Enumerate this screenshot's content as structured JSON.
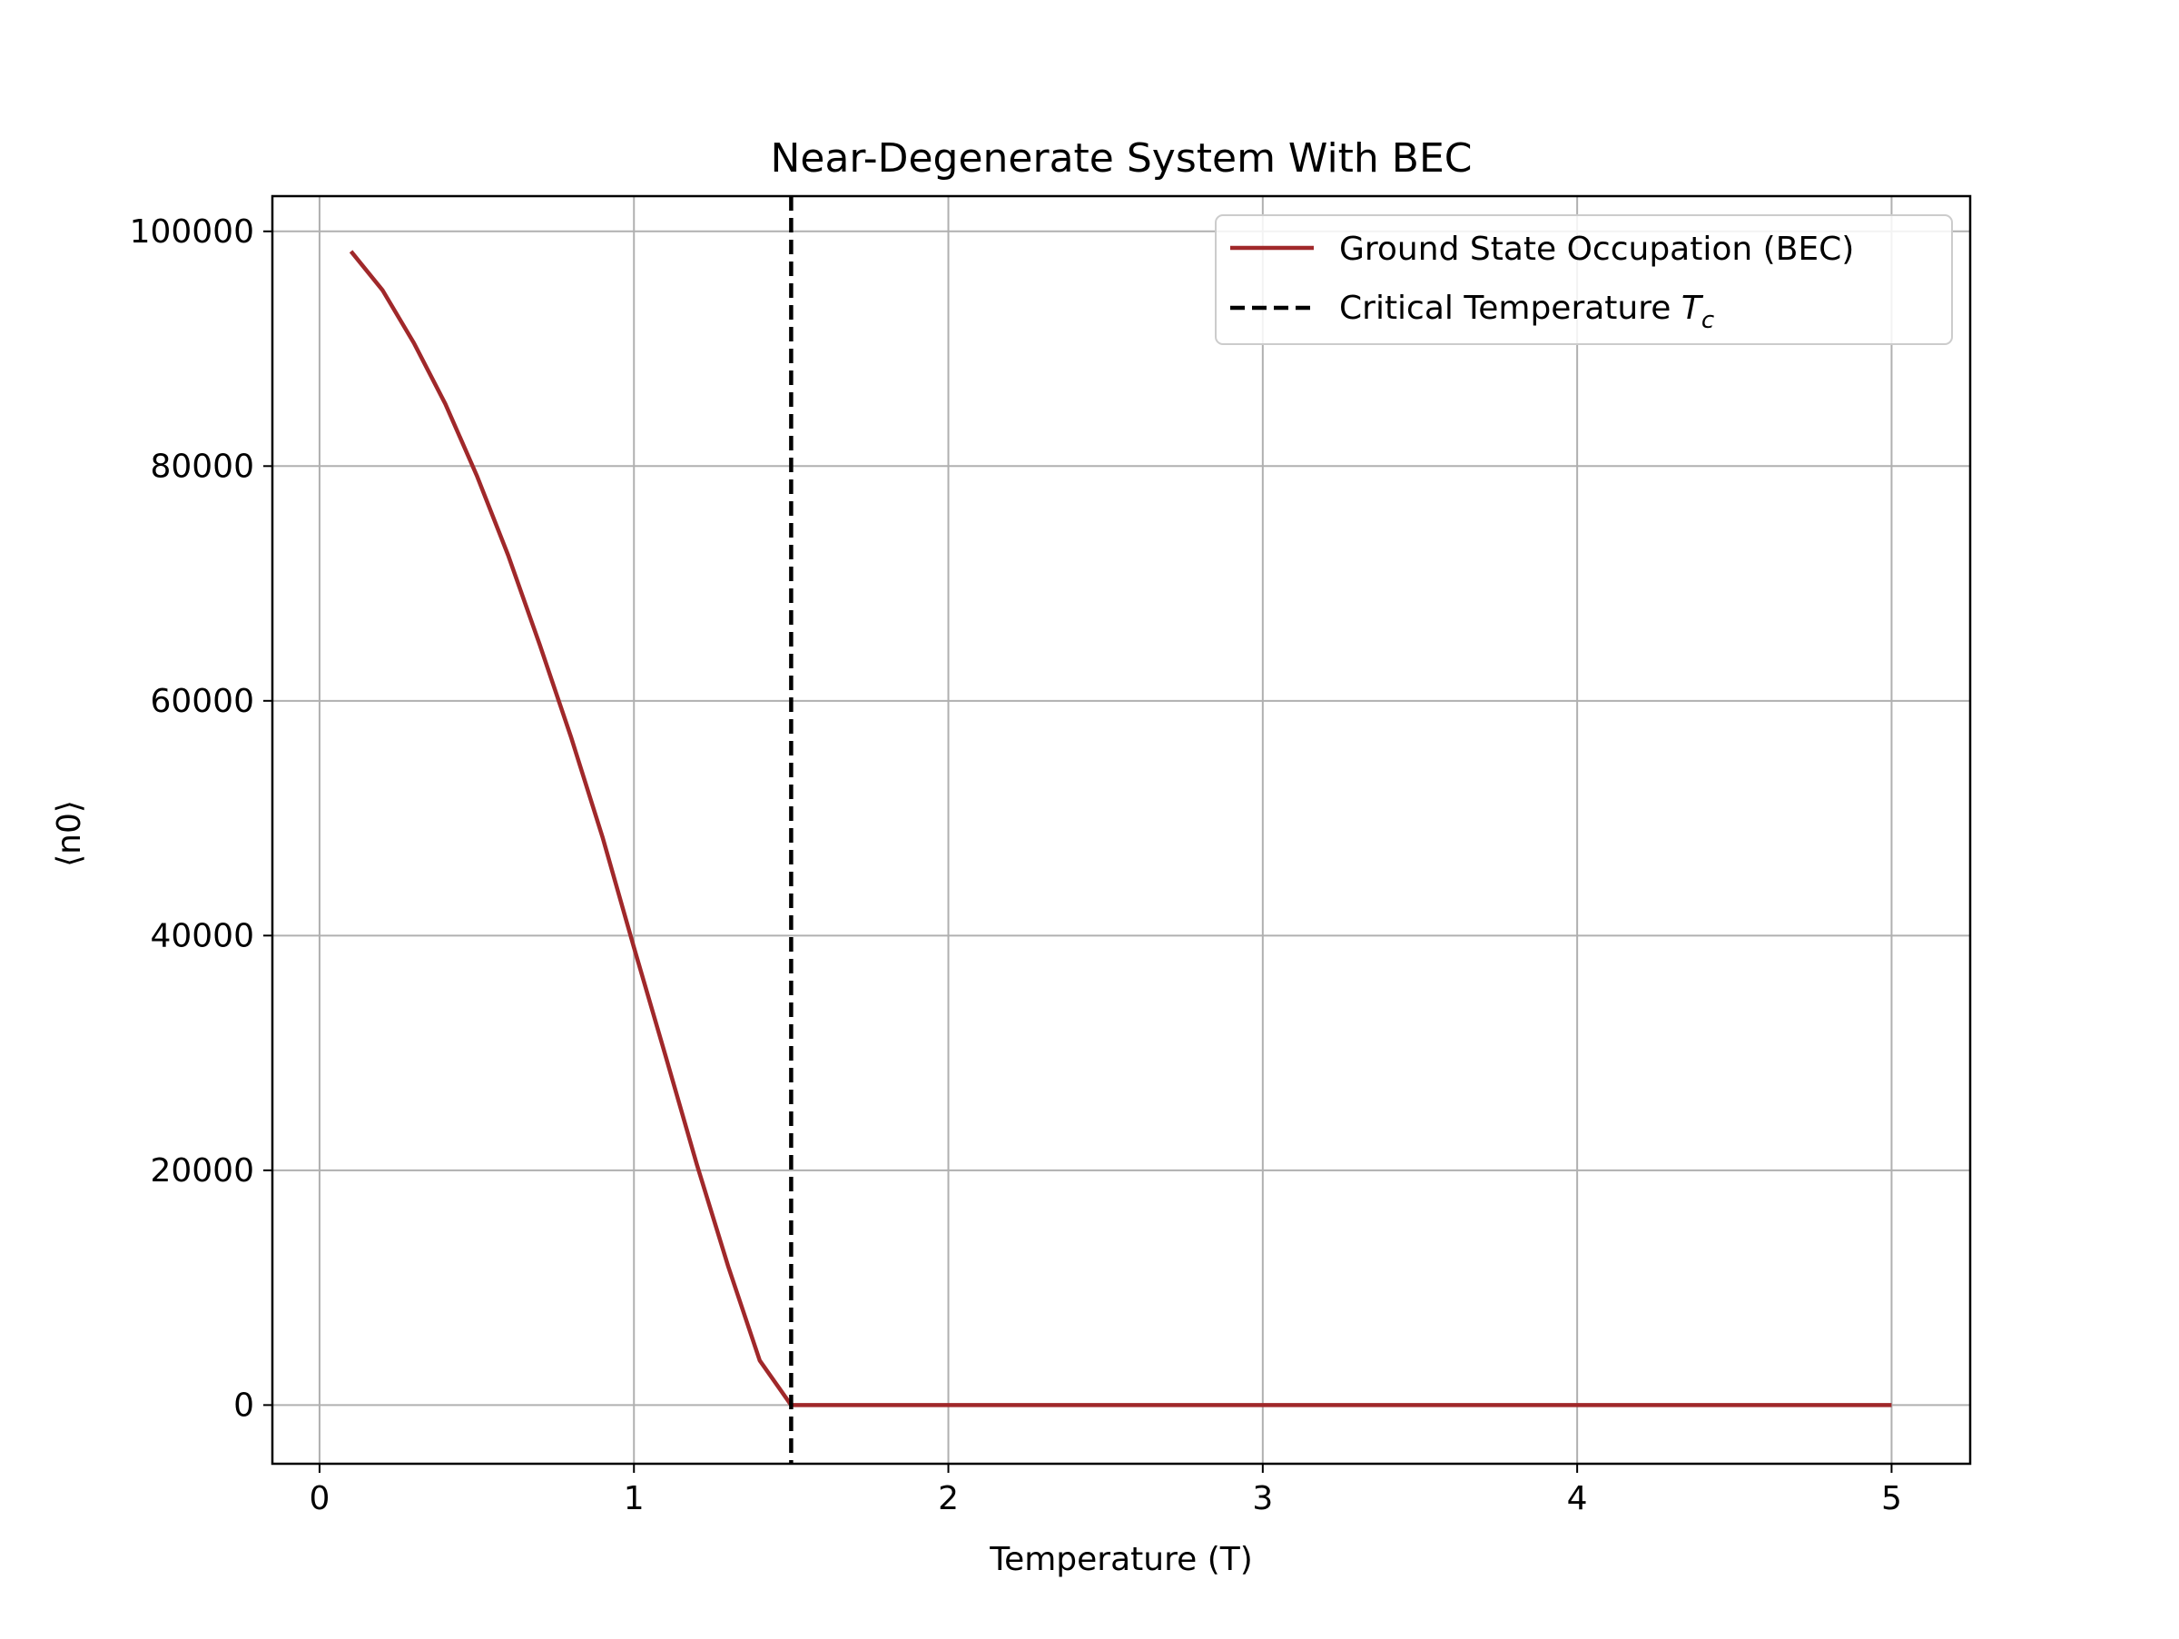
{
  "chart_data": {
    "type": "line",
    "title": "Near-Degenerate System With BEC",
    "xlabel": "Temperature (T)",
    "ylabel": "⟨n0⟩",
    "xlim": [
      -0.15,
      5.25
    ],
    "ylim": [
      -5000,
      103000
    ],
    "xticks": [
      0,
      1,
      2,
      3,
      4,
      5
    ],
    "xtick_labels": [
      "0",
      "1",
      "2",
      "3",
      "4",
      "5"
    ],
    "yticks": [
      0,
      20000,
      40000,
      60000,
      80000,
      100000
    ],
    "ytick_labels": [
      "0",
      "20000",
      "40000",
      "60000",
      "80000",
      "100000"
    ],
    "grid": true,
    "legend_position": "upper right",
    "series": [
      {
        "name": "Ground State Occupation (BEC)",
        "color": "#a0282a",
        "style": "solid",
        "x": [
          0.1,
          0.2,
          0.3,
          0.4,
          0.5,
          0.6,
          0.7,
          0.8,
          0.9,
          1.0,
          1.1,
          1.2,
          1.3,
          1.4,
          1.5,
          2.0,
          2.5,
          3.0,
          3.5,
          4.0,
          4.5,
          5.0
        ],
        "y": [
          98300,
          95000,
          90500,
          85300,
          79200,
          72400,
          64800,
          56900,
          48400,
          39000,
          29800,
          20500,
          11800,
          3800,
          0,
          0,
          0,
          0,
          0,
          0,
          0,
          0
        ]
      }
    ],
    "vlines": [
      {
        "name": "Critical Temperature",
        "subscript_symbol": "T",
        "subscript": "c",
        "x": 1.5,
        "color": "#000000",
        "style": "dashed"
      }
    ]
  }
}
